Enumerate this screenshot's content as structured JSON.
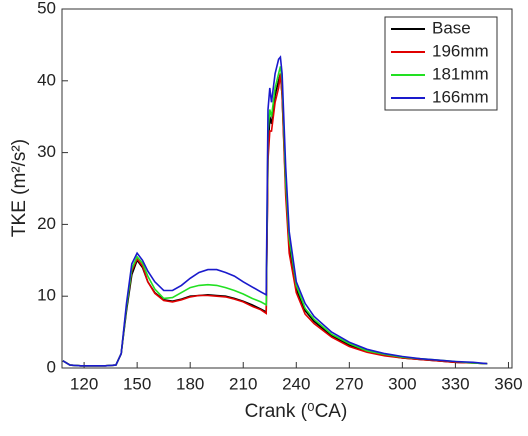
{
  "chart_data": {
    "type": "line",
    "xlabel": "Crank (⁰CA)",
    "ylabel": "TKE (m²/s²)",
    "x": [
      108,
      112,
      118,
      125,
      132,
      138,
      141,
      144,
      147,
      150,
      153,
      156,
      160,
      165,
      170,
      175,
      180,
      185,
      190,
      195,
      200,
      205,
      210,
      215,
      220,
      223,
      224,
      225,
      226,
      228,
      230,
      231,
      232,
      234,
      236,
      240,
      245,
      250,
      260,
      270,
      280,
      290,
      300,
      310,
      320,
      330,
      340,
      348
    ],
    "series": [
      {
        "name": "Base",
        "color": "#000000",
        "values": [
          1,
          0.4,
          0.3,
          0.3,
          0.3,
          0.4,
          2,
          8,
          13,
          15,
          14,
          12,
          10.5,
          9.5,
          9.3,
          9.6,
          10,
          10.1,
          10.2,
          10.1,
          10,
          9.7,
          9.3,
          8.8,
          8.2,
          7.8,
          30,
          35,
          34,
          38,
          40,
          41,
          38,
          25,
          17,
          11,
          8,
          6.5,
          4.5,
          3.2,
          2.3,
          1.8,
          1.4,
          1.2,
          1,
          0.8,
          0.7,
          0.6
        ]
      },
      {
        "name": "196mm",
        "color": "#e00000",
        "values": [
          1,
          0.4,
          0.3,
          0.3,
          0.3,
          0.4,
          2,
          8.5,
          13.5,
          15.2,
          14.2,
          12,
          10.4,
          9.4,
          9.2,
          9.5,
          9.9,
          10.1,
          10.1,
          10,
          9.9,
          9.6,
          9.2,
          8.6,
          8.1,
          7.6,
          29,
          33,
          33,
          37,
          39,
          41,
          38,
          24,
          16,
          10.5,
          7.5,
          6.2,
          4.3,
          3,
          2.2,
          1.7,
          1.4,
          1.2,
          1,
          0.8,
          0.7,
          0.6
        ]
      },
      {
        "name": "181mm",
        "color": "#22e022",
        "values": [
          1,
          0.4,
          0.3,
          0.3,
          0.3,
          0.4,
          2,
          8.5,
          13.8,
          15.5,
          14.6,
          12.8,
          11,
          9.7,
          9.8,
          10.5,
          11.2,
          11.5,
          11.6,
          11.5,
          11.2,
          10.8,
          10.3,
          9.7,
          9.2,
          8.8,
          33,
          36,
          35,
          39,
          41,
          42,
          40,
          26,
          18,
          11.5,
          8.3,
          6.8,
          4.7,
          3.4,
          2.4,
          1.9,
          1.5,
          1.3,
          1.1,
          0.9,
          0.7,
          0.6
        ]
      },
      {
        "name": "166mm",
        "color": "#1a1acc",
        "values": [
          1,
          0.4,
          0.3,
          0.3,
          0.3,
          0.4,
          2,
          9,
          14.5,
          16,
          15,
          13.5,
          12,
          10.8,
          10.8,
          11.5,
          12.5,
          13.3,
          13.7,
          13.7,
          13.3,
          12.8,
          12,
          11.3,
          10.6,
          10.2,
          36,
          39,
          37,
          41,
          43,
          43.3,
          41,
          28,
          19,
          12,
          9,
          7.2,
          5,
          3.6,
          2.6,
          2,
          1.6,
          1.3,
          1.1,
          0.9,
          0.8,
          0.6
        ]
      }
    ],
    "xlim": [
      107.5,
      362
    ],
    "ylim": [
      0,
      50
    ],
    "xticks": [
      120,
      150,
      180,
      210,
      240,
      270,
      300,
      330,
      360
    ],
    "yticks": [
      0,
      10,
      20,
      30,
      40,
      50
    ],
    "legend": "upper-right"
  }
}
